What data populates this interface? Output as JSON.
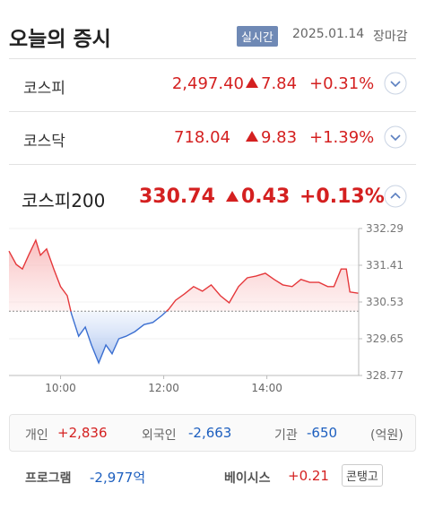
{
  "header": {
    "title": "오늘의 증시",
    "badge": "실시간",
    "date": "2025.01.14",
    "status": "장마감"
  },
  "indices": [
    {
      "name": "코스피",
      "value": "2,497.40",
      "change": "7.84",
      "rate": "+0.31%"
    },
    {
      "name": "코스닥",
      "value": "718.04",
      "change": "9.83",
      "rate": "+1.39%"
    }
  ],
  "detail": {
    "name": "코스피200",
    "value": "330.74",
    "change": "0.43",
    "rate": "+0.13%"
  },
  "chart_data": {
    "type": "line",
    "x": [
      9.0,
      9.14,
      9.26,
      9.38,
      9.52,
      9.61,
      9.73,
      9.87,
      10.0,
      10.13,
      10.21,
      10.35,
      10.48,
      10.6,
      10.74,
      10.88,
      11.0,
      11.13,
      11.27,
      11.44,
      11.62,
      11.79,
      11.97,
      12.1,
      12.23,
      12.4,
      12.58,
      12.75,
      12.92,
      13.1,
      13.27,
      13.45,
      13.62,
      13.79,
      13.97,
      14.14,
      14.31,
      14.49,
      14.66,
      14.83,
      15.01,
      15.18,
      15.3,
      15.44,
      15.54,
      15.61,
      15.77
    ],
    "values": [
      331.75,
      331.43,
      331.32,
      331.65,
      332.01,
      331.65,
      331.8,
      331.32,
      330.9,
      330.68,
      330.25,
      329.71,
      329.93,
      329.5,
      329.07,
      329.5,
      329.29,
      329.65,
      329.71,
      329.82,
      329.99,
      330.04,
      330.21,
      330.36,
      330.57,
      330.72,
      330.9,
      330.79,
      330.94,
      330.68,
      330.51,
      330.9,
      331.11,
      331.15,
      331.22,
      331.07,
      330.94,
      330.9,
      331.07,
      331.0,
      331.0,
      330.9,
      330.9,
      331.32,
      331.32,
      330.77,
      330.74
    ],
    "baseline": 330.31,
    "up_color": "#e5383b",
    "down_color": "#3b6fd1",
    "xlim": [
      9.0,
      15.78
    ],
    "xticks": [
      {
        "value": 10,
        "label": "10:00"
      },
      {
        "value": 12,
        "label": "12:00"
      },
      {
        "value": 14,
        "label": "14:00"
      }
    ],
    "ylim": [
      328.77,
      332.29
    ],
    "yticks": [
      332.29,
      331.41,
      330.53,
      329.65,
      328.77
    ]
  },
  "investors": [
    {
      "name": "개인",
      "value": "+2,836"
    },
    {
      "name": "외국인",
      "value": "-2,663"
    },
    {
      "name": "기관",
      "value": "-650"
    }
  ],
  "unit": "(억원)",
  "program": {
    "label": "프로그램",
    "value": "-2,977억"
  },
  "basis": {
    "label": "베이시스",
    "value": "+0.21",
    "button": "콘탱고"
  }
}
